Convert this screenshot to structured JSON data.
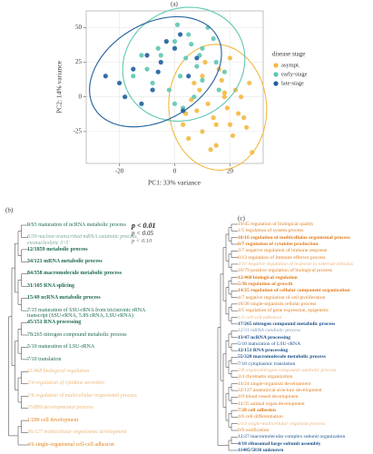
{
  "chart_data": {
    "type": "scatter",
    "panel_label": "(a)",
    "x_label": "PC1: 33% variance",
    "y_label": "PC2: 14% variance",
    "xlim": [
      -32,
      32
    ],
    "xticks": [
      -20,
      0,
      20
    ],
    "ylim": [
      -48,
      62
    ],
    "yticks": [
      -25,
      0,
      25,
      50
    ],
    "grid": true,
    "legend_title": "disease stage",
    "legend_position": "right",
    "series": [
      {
        "name": "asympt.",
        "color": "#f3b941",
        "x": [
          5,
          10,
          15,
          20,
          25,
          8,
          12,
          18,
          22,
          28,
          3,
          7,
          14,
          19,
          24,
          10,
          16,
          21,
          26,
          6,
          11,
          17,
          23,
          13,
          9,
          20,
          27,
          15,
          4,
          18
        ],
        "y": [
          -30,
          -25,
          -35,
          -20,
          -15,
          -10,
          -5,
          0,
          5,
          -40,
          -20,
          10,
          -15,
          -8,
          0,
          15,
          20,
          -28,
          -22,
          -2,
          25,
          12,
          -12,
          -38,
          5,
          28,
          10,
          -20,
          -12,
          3
        ]
      },
      {
        "name": "early-stage",
        "color": "#5ec7b3",
        "x": [
          -10,
          -5,
          0,
          5,
          10,
          15,
          -8,
          2,
          8,
          12,
          -2,
          6,
          18,
          -12,
          0,
          4,
          10,
          14,
          -6,
          3,
          7,
          -15,
          16,
          1,
          9
        ],
        "y": [
          20,
          30,
          40,
          45,
          35,
          25,
          10,
          15,
          22,
          50,
          5,
          38,
          18,
          30,
          -5,
          28,
          12,
          42,
          35,
          -8,
          0,
          15,
          5,
          52,
          30
        ]
      },
      {
        "name": "late-stage",
        "color": "#1f5f9e",
        "x": [
          -20,
          -15,
          -10,
          -5,
          0,
          5,
          -18,
          -12,
          -3,
          2,
          -8,
          8,
          -25,
          -6,
          3
        ],
        "y": [
          10,
          20,
          30,
          25,
          35,
          15,
          0,
          -5,
          40,
          45,
          5,
          28,
          15,
          18,
          -10
        ]
      }
    ]
  },
  "panel_b": {
    "label": "(b)",
    "significance_legend": [
      {
        "label": "p < 0.01",
        "style": "bold"
      },
      {
        "label": "p < 0.05",
        "style": "normal"
      },
      {
        "label": "p < 0.10",
        "style": "light"
      }
    ],
    "items": [
      {
        "text": "9/93 maturation of ncRNA metabolic process",
        "color": "#1d6b4c",
        "style": "normal"
      },
      {
        "text": "6/39 nuclear-transcribed mRNA catabolic process, exonucleolytic 3'-5'",
        "color": "#1d6b4c",
        "style": "light"
      },
      {
        "text": "12/1859 metabolic process",
        "color": "#1d6b4c",
        "style": "bold"
      },
      {
        "text": "34/121 mRNA metabolic process",
        "color": "#1d6b4c",
        "style": "bold"
      },
      {
        "text": "84/358 macromolecule metabolic process",
        "color": "#1d6b4c",
        "style": "bold"
      },
      {
        "text": "31/105 RNA splicing",
        "color": "#1d6b4c",
        "style": "bold"
      },
      {
        "text": "15/49 ncRNA metabolic process",
        "color": "#1d6b4c",
        "style": "bold"
      },
      {
        "text": "7/15 maturation of SSU-rRNA from tricistronic rRNA transcript (SSU-rRNA, 5.8S rRNA, LSU-rRNA)",
        "color": "#1d6b4c",
        "style": "normal"
      },
      {
        "text": "45/151 RNA processing",
        "color": "#1d6b4c",
        "style": "bold"
      },
      {
        "text": "78/265 nitrogen compound metabolic process",
        "color": "#1d6b4c",
        "style": "normal"
      },
      {
        "text": "5/10 maturation of LSU-rRNA",
        "color": "#1d6b4c",
        "style": "normal"
      },
      {
        "text": "7/10 translation",
        "color": "#1d6b4c",
        "style": "normal"
      },
      {
        "text": "11/468 biological regulation",
        "color": "#e0861e",
        "style": "light"
      },
      {
        "text": "2/4 regulation of cytokine secretion",
        "color": "#e0861e",
        "style": "light"
      },
      {
        "text": "2/6 regulation of multicellular organismal process",
        "color": "#e0861e",
        "style": "light"
      },
      {
        "text": "35/880 developmental process",
        "color": "#e0861e",
        "style": "light"
      },
      {
        "text": "1/288 cell development",
        "color": "#e0861e",
        "style": "normal"
      },
      {
        "text": "36/127 multicellular organismal development",
        "color": "#e0861e",
        "style": "light"
      },
      {
        "text": "4/6 single-organismal cell-cell adhesion",
        "color": "#e0861e",
        "style": "normal"
      }
    ]
  },
  "panel_c": {
    "label": "(c)",
    "items": [
      {
        "text": "19/45 regulation of biological quality",
        "color": "#e07b1a",
        "style": "normal"
      },
      {
        "text": "1/5 regulation of system process",
        "color": "#e07b1a",
        "style": "normal"
      },
      {
        "text": "10/16 regulation of multicellular organismal process",
        "color": "#e07b1a",
        "style": "bold"
      },
      {
        "text": "6/7 regulation of cytokine production",
        "color": "#e07b1a",
        "style": "bold"
      },
      {
        "text": "3/7 negative regulation of immune response",
        "color": "#e07b1a",
        "style": "normal"
      },
      {
        "text": "6/13 regulation of immune effector process",
        "color": "#e07b1a",
        "style": "normal"
      },
      {
        "text": "4/10 negative regulation of response to external stimulus",
        "color": "#e07b1a",
        "style": "light"
      },
      {
        "text": "16/79 positive regulation of biological process",
        "color": "#e07b1a",
        "style": "normal"
      },
      {
        "text": "12/468 biological regulation",
        "color": "#e07b1a",
        "style": "bold"
      },
      {
        "text": "5/36 regulation of growth",
        "color": "#e07b1a",
        "style": "bold"
      },
      {
        "text": "14/25 regulation of cellular component organization",
        "color": "#e07b1a",
        "style": "bold"
      },
      {
        "text": "4/7 negative regulation of cell proliferation",
        "color": "#e07b1a",
        "style": "normal"
      },
      {
        "text": "18/38 single-organism cellular process",
        "color": "#e07b1a",
        "style": "normal"
      },
      {
        "text": "4/5 regulation of gene expression, epigenetic",
        "color": "#e07b1a",
        "style": "normal"
      },
      {
        "text": "1/2 cell-cell adhesion",
        "color": "#e07b1a",
        "style": "light"
      },
      {
        "text": "17/265 nitrogen compound metabolic process",
        "color": "#1a4f8a",
        "style": "bold"
      },
      {
        "text": "12/31 mRNA catabolic process",
        "color": "#1a4f8a",
        "style": "light"
      },
      {
        "text": "13/47 ncRNA processing",
        "color": "#1a4f8a",
        "style": "bold"
      },
      {
        "text": "5/10 maturation of LSU-rRNA",
        "color": "#1a4f8a",
        "style": "normal"
      },
      {
        "text": "12/151 RNA processing",
        "color": "#1a4f8a",
        "style": "bold"
      },
      {
        "text": "55/328 macromolecule metabolic process",
        "color": "#1a4f8a",
        "style": "bold"
      },
      {
        "text": "7/10 cytoplasmic translation",
        "color": "#1a4f8a",
        "style": "normal"
      },
      {
        "text": "2/8 organonitrogen compound catabolic process",
        "color": "#e07b1a",
        "style": "light"
      },
      {
        "text": "3/4 chromatin organization",
        "color": "#e07b1a",
        "style": "normal"
      },
      {
        "text": "14/24 single-organism development",
        "color": "#e07b1a",
        "style": "normal"
      },
      {
        "text": "22/127 anatomical structure development",
        "color": "#e07b1a",
        "style": "normal"
      },
      {
        "text": "4/9 blood vessel development",
        "color": "#e07b1a",
        "style": "normal"
      },
      {
        "text": "14/35 animal organ development",
        "color": "#e07b1a",
        "style": "normal"
      },
      {
        "text": "7/20 cell adhesion",
        "color": "#e07b1a",
        "style": "bold"
      },
      {
        "text": "4/6 cell differentiation",
        "color": "#e07b1a",
        "style": "normal"
      },
      {
        "text": "2/14 single-multicellular organism process",
        "color": "#e07b1a",
        "style": "light"
      },
      {
        "text": "6/9 ossification",
        "color": "#e07b1a",
        "style": "normal"
      },
      {
        "text": "12/27 macromolecular complex subunit organization",
        "color": "#1a4f8a",
        "style": "normal"
      },
      {
        "text": "4/18 ribosomal large subunit assembly",
        "color": "#1a4f8a",
        "style": "bold"
      },
      {
        "text": "11405/5836 unknown",
        "color": "#1a4f8a",
        "style": "bold"
      }
    ]
  }
}
